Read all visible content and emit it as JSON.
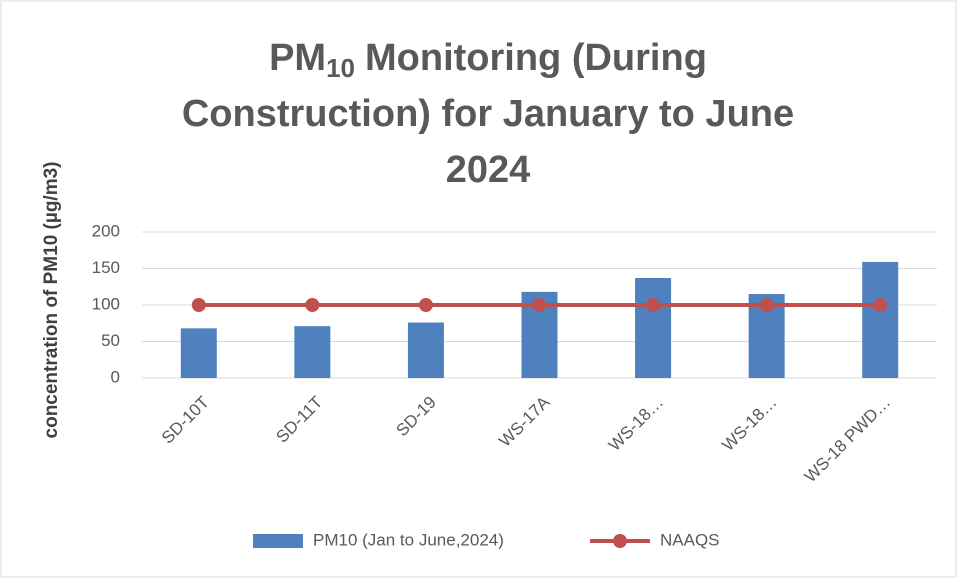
{
  "chart_data": {
    "type": "bar",
    "title": {
      "prefix": "PM",
      "subscript": "10",
      "line1": "Monitoring (During",
      "line2": "Construction) for January to June",
      "line3": "2024"
    },
    "y_label": "concentration of PM10 (µg/m3)",
    "categories": [
      "SD-10T",
      "SD-11T",
      "SD-19",
      "WS-17A",
      "WS-18…",
      "WS-18…",
      "WS-18  PWD…"
    ],
    "series": [
      {
        "name": "PM10 (Jan to June,2024)",
        "type": "bar",
        "color": "#4e81bd",
        "values": [
          68,
          71,
          76,
          118,
          137,
          115,
          159
        ]
      },
      {
        "name": "NAAQS",
        "type": "line",
        "color": "#c0504d",
        "values": [
          100,
          100,
          100,
          100,
          100,
          100,
          100
        ]
      }
    ],
    "ylim": [
      0,
      200
    ],
    "yticks": [
      0,
      50,
      100,
      150,
      200
    ],
    "grid": true,
    "legend": "bottom"
  }
}
